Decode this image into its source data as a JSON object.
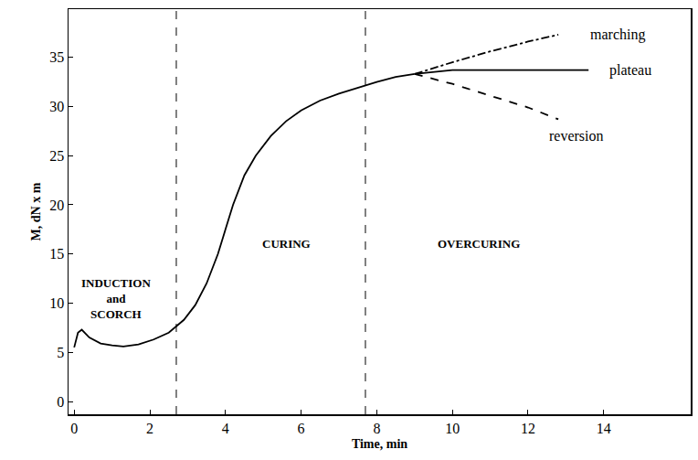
{
  "chart_data": {
    "type": "line",
    "x_label": "Time, min",
    "y_label": "M, dN x m",
    "xlim": [
      -0.15,
      16.3
    ],
    "xticks": [
      0,
      2,
      4,
      6,
      8,
      10,
      12,
      14
    ],
    "ylim": [
      -1.3,
      39.9
    ],
    "yticks": [
      0,
      5,
      10,
      15,
      20,
      25,
      30,
      35
    ],
    "grid": false,
    "series": [
      {
        "color": "#000000",
        "line_style": "solid",
        "x": [
          0,
          0.1,
          0.2,
          0.4,
          0.7,
          1.0,
          1.3,
          1.7,
          2.1,
          2.5,
          2.9,
          3.2,
          3.5,
          3.8,
          4.0,
          4.2,
          4.5,
          4.8,
          5.2,
          5.6,
          6.0,
          6.5,
          7.0,
          7.5,
          8.0,
          8.5,
          9.0
        ],
        "values": [
          5.5,
          7.0,
          7.3,
          6.5,
          5.9,
          5.7,
          5.6,
          5.8,
          6.3,
          7.0,
          8.3,
          9.8,
          12.0,
          15.0,
          17.5,
          20.0,
          23.0,
          25.0,
          27.0,
          28.5,
          29.6,
          30.6,
          31.3,
          31.9,
          32.5,
          33.0,
          33.3
        ]
      },
      {
        "name": "marching",
        "color": "#000000",
        "line_style": "dashdot",
        "x": [
          9.0,
          10.0,
          11.0,
          12.0,
          12.8
        ],
        "values": [
          33.3,
          34.5,
          35.6,
          36.6,
          37.3
        ],
        "label_at": {
          "x": 13.6,
          "y": 37.3
        }
      },
      {
        "name": "plateau",
        "color": "#000000",
        "line_style": "solid",
        "x": [
          9.0,
          10.0,
          13.6
        ],
        "values": [
          33.3,
          33.7,
          33.7
        ],
        "label_at": {
          "x": 14.1,
          "y": 33.7
        }
      },
      {
        "name": "reversion",
        "color": "#000000",
        "line_style": "dashed",
        "x": [
          9.0,
          10.0,
          11.0,
          12.0,
          12.8
        ],
        "values": [
          33.3,
          32.3,
          31.1,
          29.9,
          28.7
        ],
        "label_at": {
          "x": 12.5,
          "y": 27.0
        }
      }
    ],
    "vlines": [
      2.7,
      7.7
    ],
    "annotations": [
      {
        "text": "INDUCTION and SCORCH",
        "x": 1.1,
        "y": 10.5
      },
      {
        "text": "CURING",
        "x": 5.6,
        "y": 16.0
      },
      {
        "text": "OVERCURING",
        "x": 10.7,
        "y": 16.0
      }
    ]
  }
}
